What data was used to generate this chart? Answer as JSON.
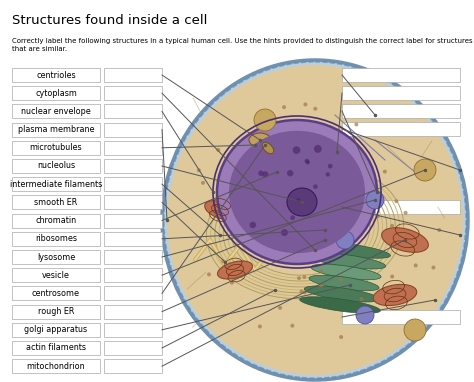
{
  "title": "Structures found inside a cell",
  "subtitle": "Correctly label the following structures in a typical human cell. Use the hints provided to distinguish the correct label for structures\nthat are similar.",
  "bg_color": "#ffffff",
  "left_labels": [
    "centrioles",
    "cytoplasm",
    "nuclear envelope",
    "plasma membrane",
    "microtubules",
    "nucleolus",
    "intermediate filaments",
    "smooth ER",
    "chromatin",
    "ribosomes",
    "lysosome",
    "vesicle",
    "centrosome",
    "rough ER",
    "golgi apparatus",
    "actin filaments",
    "mitochondrion"
  ],
  "title_fontsize": 9.5,
  "subtitle_fontsize": 5.0,
  "label_fontsize": 5.8,
  "box_color": "#ffffff",
  "box_edge_color": "#aaaaaa",
  "line_color": "#555555",
  "cell_outer_color": "#b8cfe0",
  "cell_outer_edge": "#7090b0",
  "cytoplasm_color": "#dfc89a",
  "nucleus_color": "#9b7bb8",
  "nucleus_inner_color": "#7a5a98",
  "nucleolus_color": "#5a3a78",
  "er_color": "#b8a870",
  "golgi_color": "#5a8a6a",
  "mito_color": "#c07050",
  "mito_edge": "#8a4828",
  "lyso_color": "#8080c0",
  "vesicle_color": "#c8a860",
  "centrosome_color": "#c0a060"
}
